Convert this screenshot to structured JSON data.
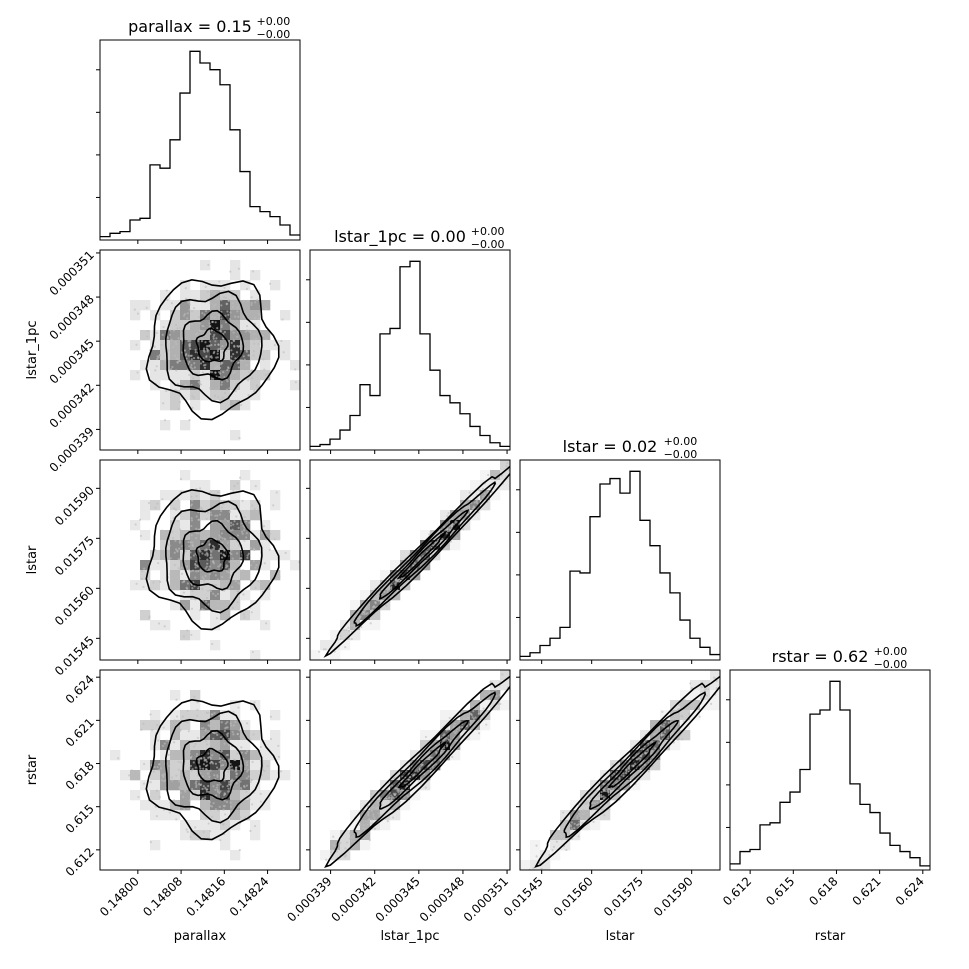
{
  "chart_data": {
    "type": "corner",
    "parameters": [
      "parallax",
      "lstar_1pc",
      "lstar",
      "rstar"
    ],
    "axis_ticks": {
      "parallax": [
        "0.14800",
        "0.14808",
        "0.14816",
        "0.14824"
      ],
      "lstar_1pc": [
        "0.000339",
        "0.000342",
        "0.000345",
        "0.000348",
        "0.000351"
      ],
      "lstar": [
        "0.01545",
        "0.01560",
        "0.01575",
        "0.01590"
      ],
      "rstar": [
        "0.612",
        "0.615",
        "0.618",
        "0.621",
        "0.624"
      ]
    },
    "titles": [
      {
        "param": "parallax",
        "main": "parallax = 0.15",
        "sup": "+0.00",
        "sub": "−0.00"
      },
      {
        "param": "lstar_1pc",
        "main": "lstar_1pc = 0.00",
        "sup": "+0.00",
        "sub": "−0.00"
      },
      {
        "param": "lstar",
        "main": "lstar = 0.02",
        "sup": "+0.00",
        "sub": "−0.00"
      },
      {
        "param": "rstar",
        "main": "rstar = 0.62",
        "sup": "+0.00",
        "sub": "−0.00"
      }
    ],
    "histograms": [
      {
        "param": "parallax",
        "range": [
          0.14793,
          0.1483
        ],
        "counts": [
          2,
          4,
          5,
          12,
          13,
          45,
          43,
          60,
          88,
          113,
          106,
          102,
          93,
          66,
          41,
          20,
          17,
          14,
          9,
          3
        ]
      },
      {
        "param": "lstar_1pc",
        "range": [
          0.0003376,
          0.0003512
        ],
        "counts": [
          2,
          3,
          6,
          11,
          19,
          36,
          30,
          64,
          67,
          101,
          104,
          64,
          44,
          30,
          26,
          20,
          13,
          8,
          4,
          2
        ]
      },
      {
        "param": "lstar",
        "range": [
          0.015385,
          0.015985
        ],
        "counts": [
          2,
          4,
          8,
          12,
          18,
          49,
          48,
          79,
          97,
          100,
          92,
          104,
          77,
          63,
          48,
          37,
          22,
          12,
          7,
          3
        ]
      },
      {
        "param": "rstar",
        "range": [
          0.6106,
          0.6245
        ],
        "counts": [
          3,
          9,
          10,
          22,
          23,
          33,
          38,
          49,
          76,
          78,
          92,
          78,
          42,
          32,
          28,
          18,
          12,
          9,
          6,
          2
        ]
      }
    ],
    "pairs": [
      {
        "x": "parallax",
        "y": "lstar_1pc",
        "correlation": 0.0
      },
      {
        "x": "parallax",
        "y": "lstar",
        "correlation": 0.0
      },
      {
        "x": "parallax",
        "y": "rstar",
        "correlation": 0.0
      },
      {
        "x": "lstar_1pc",
        "y": "lstar",
        "correlation": 0.99
      },
      {
        "x": "lstar_1pc",
        "y": "rstar",
        "correlation": 0.98
      },
      {
        "x": "lstar",
        "y": "rstar",
        "correlation": 0.98
      }
    ],
    "color": "#000000"
  }
}
